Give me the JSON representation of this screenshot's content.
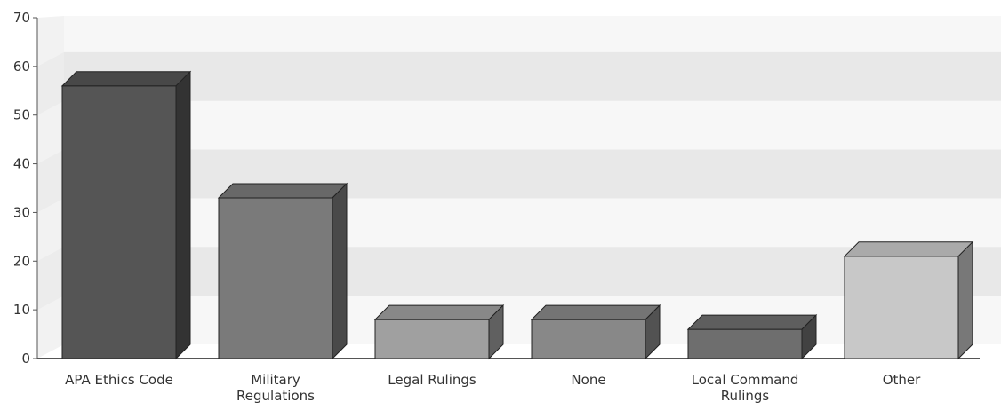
{
  "chart_data": {
    "type": "bar",
    "style": "3d",
    "title": "",
    "xlabel": "",
    "ylabel": "",
    "ylim": [
      0,
      70
    ],
    "yticks": [
      0,
      10,
      20,
      30,
      40,
      50,
      60,
      70
    ],
    "ytick_labels": [
      "0",
      "10",
      "20",
      "30",
      "40",
      "50",
      "60",
      "70"
    ],
    "grid": "alternating horizontal bands",
    "categories": [
      [
        "APA Ethics Code"
      ],
      [
        "Military",
        "Regulations"
      ],
      [
        "Legal Rulings"
      ],
      [
        "None"
      ],
      [
        "Local Command",
        "Rulings"
      ],
      [
        "Other"
      ]
    ],
    "values": [
      56,
      33,
      8,
      8,
      6,
      21
    ],
    "colors": [
      "#555555",
      "#7a7a7a",
      "#a0a0a0",
      "#888888",
      "#6e6e6e",
      "#c8c8c8"
    ]
  }
}
